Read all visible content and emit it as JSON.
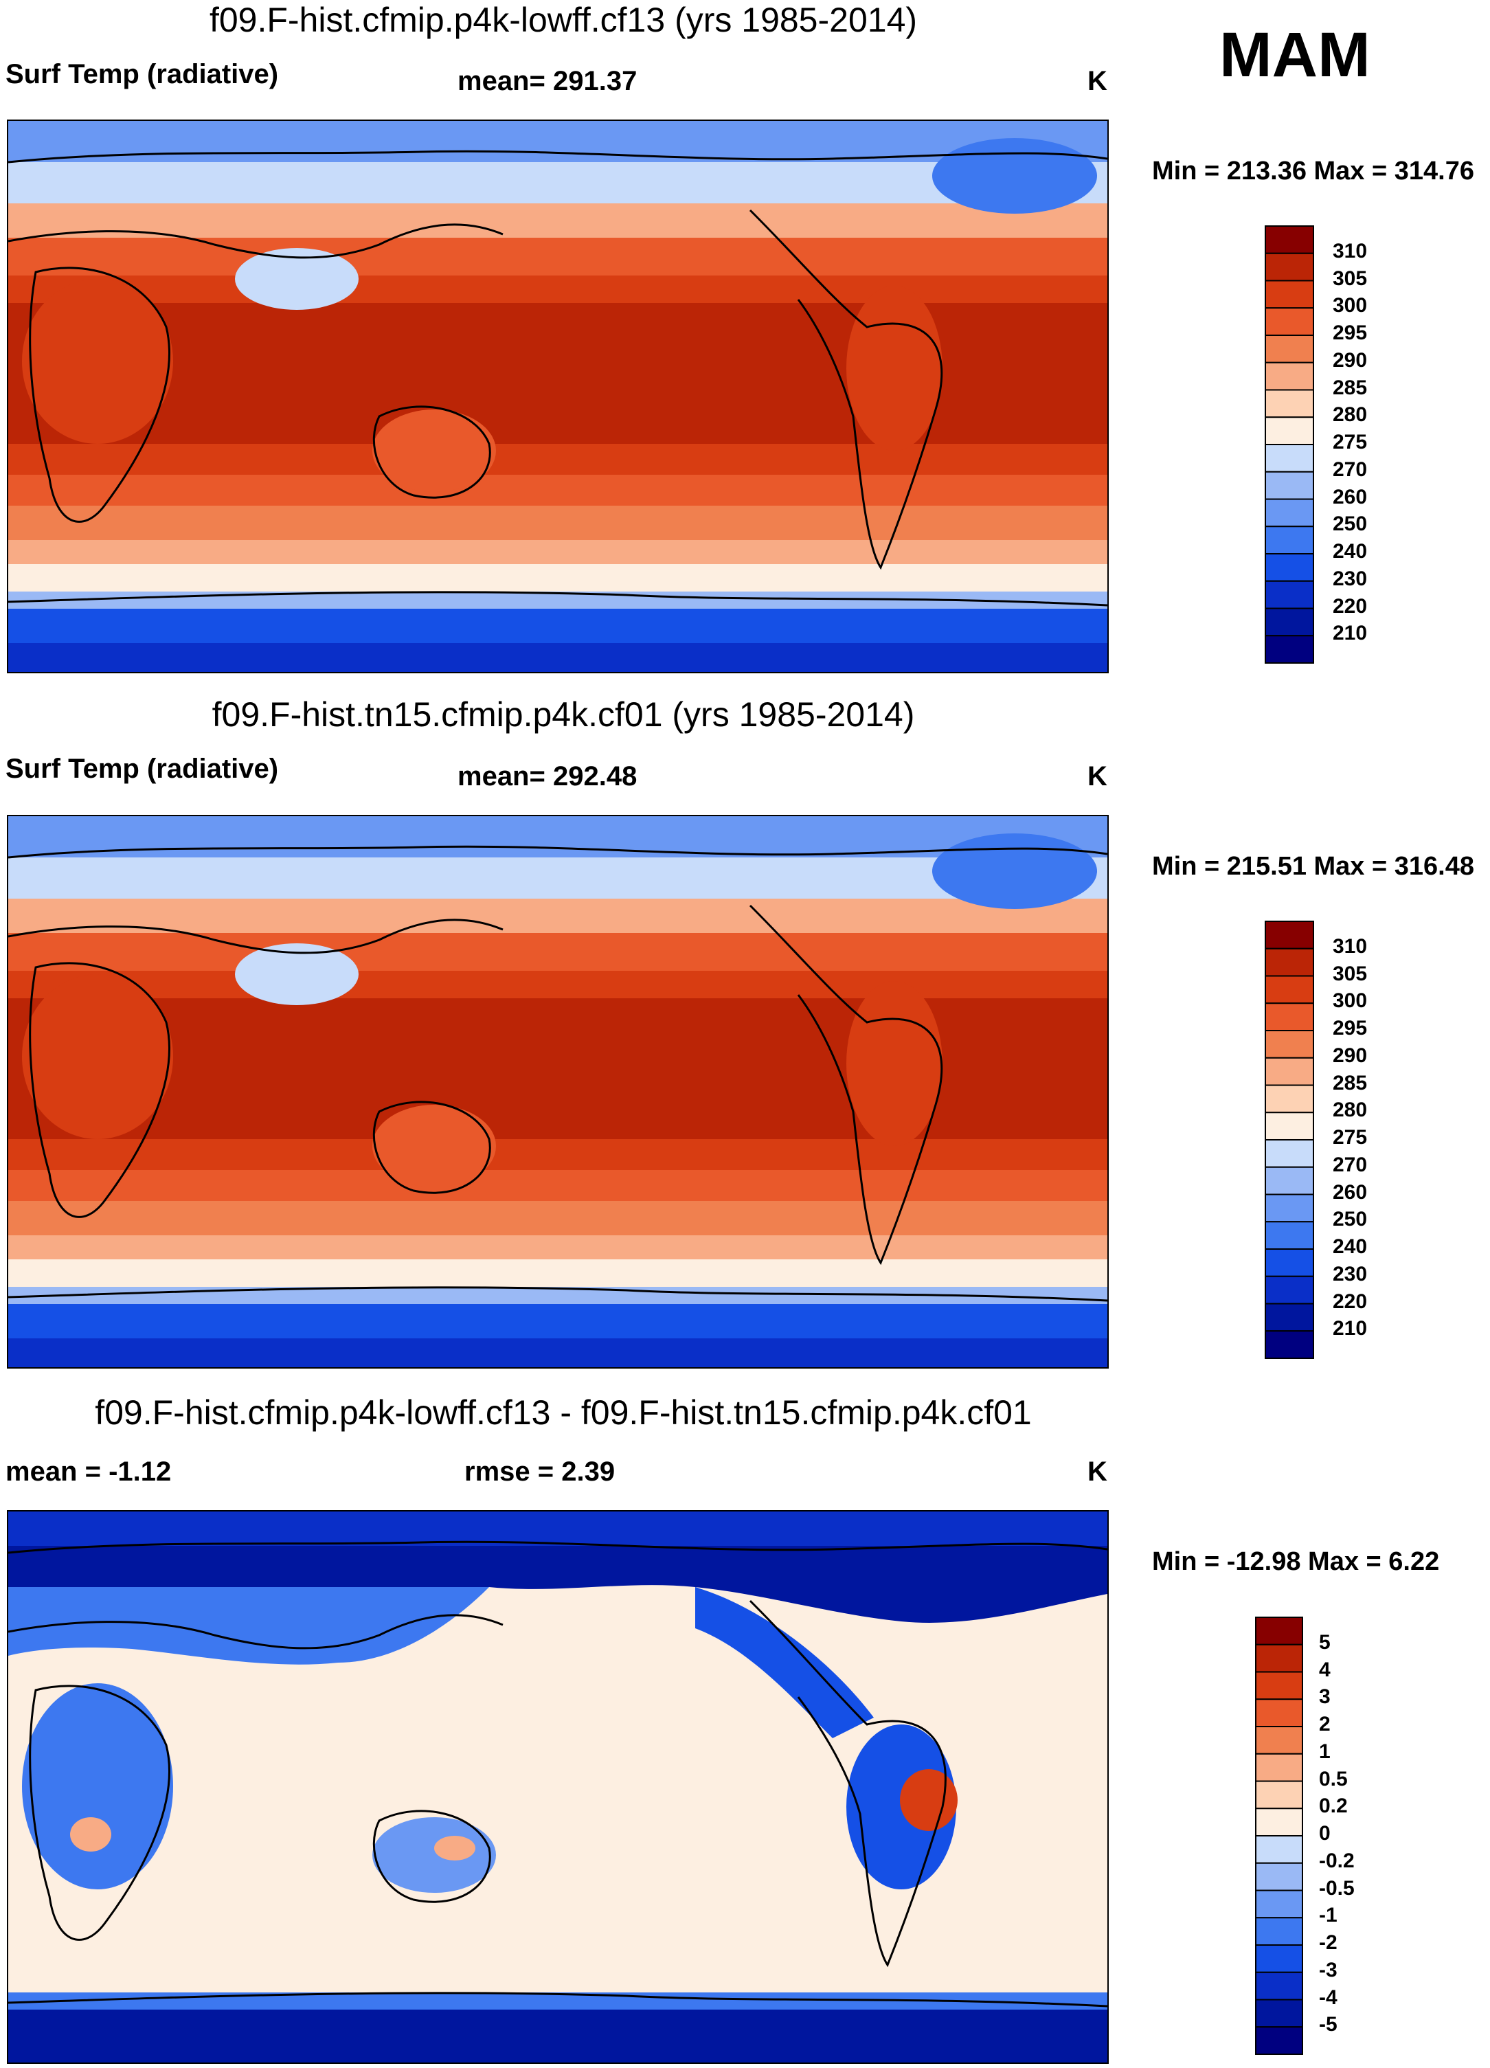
{
  "season": "MAM",
  "colors": {
    "abs_levels": [
      "#000080",
      "#00169e",
      "#0a2fc8",
      "#1550e6",
      "#3d78f0",
      "#6a98f3",
      "#9ab9f5",
      "#c8dcfa",
      "#fdefe1",
      "#fdd2b4",
      "#f8ab85",
      "#f0804f",
      "#e9592b",
      "#d83d12",
      "#bb2506",
      "#870000"
    ],
    "diff_levels": [
      "#000080",
      "#00169e",
      "#0a2fc8",
      "#1550e6",
      "#3d78f0",
      "#6a98f3",
      "#9ab9f5",
      "#c8dcfa",
      "#fdefe1",
      "#fdd2b4",
      "#f8ab85",
      "#f0804f",
      "#e9592b",
      "#d83d12",
      "#bb2506",
      "#870000"
    ]
  },
  "panels": [
    {
      "title": "f09.F-hist.cfmip.p4k-lowff.cf13 (yrs 1985-2014)",
      "left_label": "Surf Temp (radiative)",
      "center_label": "mean= 291.37",
      "units": "K",
      "minmax": "Min = 213.36 Max = 314.76",
      "colorbar_labels": [
        "310",
        "305",
        "300",
        "295",
        "290",
        "285",
        "280",
        "275",
        "270",
        "260",
        "250",
        "240",
        "230",
        "220",
        "210"
      ]
    },
    {
      "title": "f09.F-hist.tn15.cfmip.p4k.cf01 (yrs 1985-2014)",
      "left_label": "Surf Temp (radiative)",
      "center_label": "mean= 292.48",
      "units": "K",
      "minmax": "Min = 215.51 Max = 316.48",
      "colorbar_labels": [
        "310",
        "305",
        "300",
        "295",
        "290",
        "285",
        "280",
        "275",
        "270",
        "260",
        "250",
        "240",
        "230",
        "220",
        "210"
      ]
    },
    {
      "title": "f09.F-hist.cfmip.p4k-lowff.cf13 - f09.F-hist.tn15.cfmip.p4k.cf01",
      "left_label": "mean =  -1.12",
      "center_label": "rmse =   2.39",
      "units": "K",
      "minmax": "Min = -12.98 Max =   6.22",
      "colorbar_labels": [
        "5",
        "4",
        "3",
        "2",
        "1",
        "0.5",
        "0.2",
        "0",
        "-0.2",
        "-0.5",
        "-1",
        "-2",
        "-3",
        "-4",
        "-5"
      ]
    }
  ],
  "chart_data": [
    {
      "type": "heatmap",
      "title": "f09.F-hist.cfmip.p4k-lowff.cf13 (yrs 1985-2014)",
      "variable": "Surf Temp (radiative)",
      "units": "K",
      "mean": 291.37,
      "min": 213.36,
      "max": 314.76,
      "contour_levels": [
        210,
        220,
        230,
        240,
        250,
        260,
        270,
        275,
        280,
        285,
        290,
        295,
        300,
        305,
        310
      ]
    },
    {
      "type": "heatmap",
      "title": "f09.F-hist.tn15.cfmip.p4k.cf01 (yrs 1985-2014)",
      "variable": "Surf Temp (radiative)",
      "units": "K",
      "mean": 292.48,
      "min": 215.51,
      "max": 316.48,
      "contour_levels": [
        210,
        220,
        230,
        240,
        250,
        260,
        270,
        275,
        280,
        285,
        290,
        295,
        300,
        305,
        310
      ]
    },
    {
      "type": "heatmap",
      "title": "f09.F-hist.cfmip.p4k-lowff.cf13 - f09.F-hist.tn15.cfmip.p4k.cf01",
      "units": "K",
      "mean": -1.12,
      "rmse": 2.39,
      "min": -12.98,
      "max": 6.22,
      "contour_levels": [
        -5,
        -4,
        -3,
        -2,
        -1,
        -0.5,
        -0.2,
        0,
        0.2,
        0.5,
        1,
        2,
        3,
        4,
        5
      ]
    }
  ]
}
